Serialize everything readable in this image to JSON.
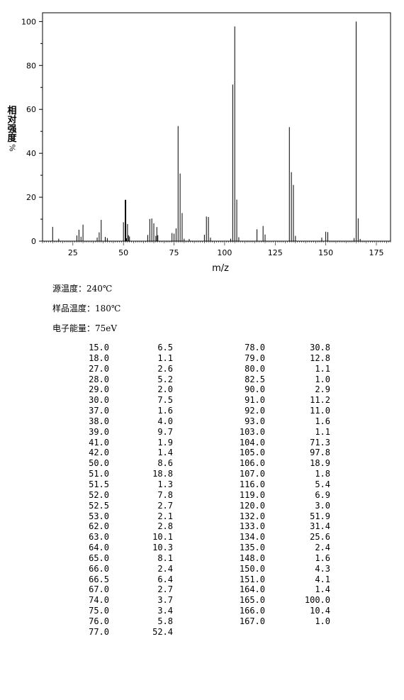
{
  "chart_data": {
    "type": "bar",
    "xlabel": "m/z",
    "ylabel": "相对强度%",
    "ylabel_chars": [
      "相",
      "对",
      "强",
      "度",
      "%"
    ],
    "xlim": [
      10,
      182
    ],
    "ylim": [
      0,
      104
    ],
    "xticks": [
      25,
      50,
      75,
      100,
      125,
      150,
      175
    ],
    "yticks": [
      0,
      20,
      40,
      60,
      80,
      100
    ],
    "peaks": [
      {
        "mz": 15.0,
        "intensity": 6.5
      },
      {
        "mz": 18.0,
        "intensity": 1.1
      },
      {
        "mz": 27.0,
        "intensity": 2.6
      },
      {
        "mz": 28.0,
        "intensity": 5.2
      },
      {
        "mz": 29.0,
        "intensity": 2.0
      },
      {
        "mz": 30.0,
        "intensity": 7.5
      },
      {
        "mz": 37.0,
        "intensity": 1.6
      },
      {
        "mz": 38.0,
        "intensity": 4.0
      },
      {
        "mz": 39.0,
        "intensity": 9.7
      },
      {
        "mz": 41.0,
        "intensity": 1.9
      },
      {
        "mz": 42.0,
        "intensity": 1.4
      },
      {
        "mz": 50.0,
        "intensity": 8.6
      },
      {
        "mz": 51.0,
        "intensity": 18.8
      },
      {
        "mz": 51.5,
        "intensity": 1.3
      },
      {
        "mz": 52.0,
        "intensity": 7.8
      },
      {
        "mz": 52.5,
        "intensity": 2.7
      },
      {
        "mz": 53.0,
        "intensity": 2.1
      },
      {
        "mz": 62.0,
        "intensity": 2.8
      },
      {
        "mz": 63.0,
        "intensity": 10.1
      },
      {
        "mz": 64.0,
        "intensity": 10.3
      },
      {
        "mz": 65.0,
        "intensity": 8.1
      },
      {
        "mz": 66.0,
        "intensity": 2.4
      },
      {
        "mz": 66.5,
        "intensity": 6.4
      },
      {
        "mz": 67.0,
        "intensity": 2.7
      },
      {
        "mz": 74.0,
        "intensity": 3.7
      },
      {
        "mz": 75.0,
        "intensity": 3.4
      },
      {
        "mz": 76.0,
        "intensity": 5.8
      },
      {
        "mz": 77.0,
        "intensity": 52.4
      },
      {
        "mz": 78.0,
        "intensity": 30.8
      },
      {
        "mz": 79.0,
        "intensity": 12.8
      },
      {
        "mz": 80.0,
        "intensity": 1.1
      },
      {
        "mz": 82.5,
        "intensity": 1.0
      },
      {
        "mz": 90.0,
        "intensity": 2.9
      },
      {
        "mz": 91.0,
        "intensity": 11.2
      },
      {
        "mz": 92.0,
        "intensity": 11.0
      },
      {
        "mz": 93.0,
        "intensity": 1.6
      },
      {
        "mz": 103.0,
        "intensity": 1.1
      },
      {
        "mz": 104.0,
        "intensity": 71.3
      },
      {
        "mz": 105.0,
        "intensity": 97.8
      },
      {
        "mz": 106.0,
        "intensity": 18.9
      },
      {
        "mz": 107.0,
        "intensity": 1.8
      },
      {
        "mz": 116.0,
        "intensity": 5.4
      },
      {
        "mz": 119.0,
        "intensity": 6.9
      },
      {
        "mz": 120.0,
        "intensity": 3.0
      },
      {
        "mz": 132.0,
        "intensity": 51.9
      },
      {
        "mz": 133.0,
        "intensity": 31.4
      },
      {
        "mz": 134.0,
        "intensity": 25.6
      },
      {
        "mz": 135.0,
        "intensity": 2.4
      },
      {
        "mz": 148.0,
        "intensity": 1.6
      },
      {
        "mz": 150.0,
        "intensity": 4.3
      },
      {
        "mz": 151.0,
        "intensity": 4.1
      },
      {
        "mz": 164.0,
        "intensity": 1.4
      },
      {
        "mz": 165.0,
        "intensity": 100.0
      },
      {
        "mz": 166.0,
        "intensity": 10.4
      },
      {
        "mz": 167.0,
        "intensity": 1.0
      }
    ],
    "colors": {
      "bars": "#000000",
      "axis": "#000000"
    }
  },
  "conditions": [
    "源温度：240℃",
    "样品温度：180℃",
    "电子能量：75eV"
  ],
  "table": {
    "left": [
      [
        "15.0",
        "6.5"
      ],
      [
        "18.0",
        "1.1"
      ],
      [
        "27.0",
        "2.6"
      ],
      [
        "28.0",
        "5.2"
      ],
      [
        "29.0",
        "2.0"
      ],
      [
        "30.0",
        "7.5"
      ],
      [
        "37.0",
        "1.6"
      ],
      [
        "38.0",
        "4.0"
      ],
      [
        "39.0",
        "9.7"
      ],
      [
        "41.0",
        "1.9"
      ],
      [
        "42.0",
        "1.4"
      ],
      [
        "50.0",
        "8.6"
      ],
      [
        "51.0",
        "18.8"
      ],
      [
        "51.5",
        "1.3"
      ],
      [
        "52.0",
        "7.8"
      ],
      [
        "52.5",
        "2.7"
      ],
      [
        "53.0",
        "2.1"
      ],
      [
        "62.0",
        "2.8"
      ],
      [
        "63.0",
        "10.1"
      ],
      [
        "64.0",
        "10.3"
      ],
      [
        "65.0",
        "8.1"
      ],
      [
        "66.0",
        "2.4"
      ],
      [
        "66.5",
        "6.4"
      ],
      [
        "67.0",
        "2.7"
      ],
      [
        "74.0",
        "3.7"
      ],
      [
        "75.0",
        "3.4"
      ],
      [
        "76.0",
        "5.8"
      ],
      [
        "77.0",
        "52.4"
      ]
    ],
    "right": [
      [
        "78.0",
        "30.8"
      ],
      [
        "79.0",
        "12.8"
      ],
      [
        "80.0",
        "1.1"
      ],
      [
        "82.5",
        "1.0"
      ],
      [
        "90.0",
        "2.9"
      ],
      [
        "91.0",
        "11.2"
      ],
      [
        "92.0",
        "11.0"
      ],
      [
        "93.0",
        "1.6"
      ],
      [
        "103.0",
        "1.1"
      ],
      [
        "104.0",
        "71.3"
      ],
      [
        "105.0",
        "97.8"
      ],
      [
        "106.0",
        "18.9"
      ],
      [
        "107.0",
        "1.8"
      ],
      [
        "116.0",
        "5.4"
      ],
      [
        "119.0",
        "6.9"
      ],
      [
        "120.0",
        "3.0"
      ],
      [
        "132.0",
        "51.9"
      ],
      [
        "133.0",
        "31.4"
      ],
      [
        "134.0",
        "25.6"
      ],
      [
        "135.0",
        "2.4"
      ],
      [
        "148.0",
        "1.6"
      ],
      [
        "150.0",
        "4.3"
      ],
      [
        "151.0",
        "4.1"
      ],
      [
        "164.0",
        "1.4"
      ],
      [
        "165.0",
        "100.0"
      ],
      [
        "166.0",
        "10.4"
      ],
      [
        "167.0",
        "1.0"
      ]
    ]
  }
}
